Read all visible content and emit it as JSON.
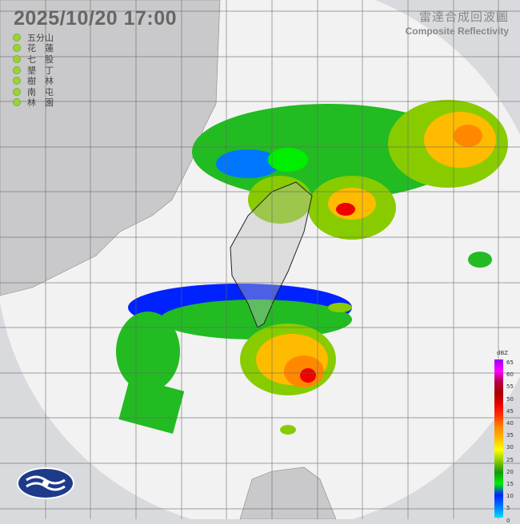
{
  "header": {
    "datetime": "2025/10/20  17:00",
    "product_zh": "雷達合成回波圖",
    "product_en": "Composite Reflectivity"
  },
  "stations": [
    {
      "name": "五分山",
      "status_color": "#9ad23a"
    },
    {
      "name": "花　蓮",
      "status_color": "#9ad23a"
    },
    {
      "name": "七　股",
      "status_color": "#9ad23a"
    },
    {
      "name": "墾　丁",
      "status_color": "#9ad23a"
    },
    {
      "name": "樹　林",
      "status_color": "#9ad23a"
    },
    {
      "name": "南　屯",
      "status_color": "#9ad23a"
    },
    {
      "name": "林　園",
      "status_color": "#9ad23a"
    }
  ],
  "scale": {
    "unit": "dBZ",
    "labels": [
      "65",
      "60",
      "55",
      "50",
      "45",
      "40",
      "35",
      "30",
      "25",
      "20",
      "15",
      "10",
      "5",
      "0"
    ],
    "colors": [
      "#9900ff",
      "#ff00ff",
      "#b30044",
      "#aa0000",
      "#ee0000",
      "#ff3300",
      "#ff8800",
      "#ffbb00",
      "#ffff00",
      "#88cc00",
      "#119911",
      "#00ee00",
      "#0022ff",
      "#0077ff",
      "#00ddff"
    ]
  },
  "logo": "central-weather-administration-logo"
}
